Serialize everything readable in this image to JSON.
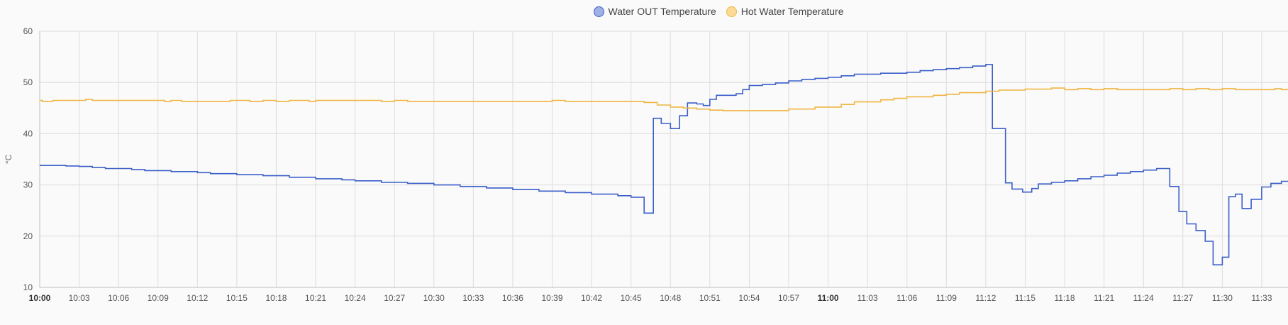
{
  "legend": {
    "items": [
      {
        "label": "Water OUT Temperature",
        "fill": "#9fb0e4",
        "stroke": "#3b5fc9"
      },
      {
        "label": "Hot Water Temperature",
        "fill": "#fbdb96",
        "stroke": "#f0b542"
      }
    ]
  },
  "chart_data": {
    "type": "line",
    "step": true,
    "ylabel": "°C",
    "xlabel": "",
    "ylim": [
      10,
      60
    ],
    "yticks": [
      10,
      20,
      30,
      40,
      50,
      60
    ],
    "x_unit": "time",
    "xlim": [
      "10:00",
      "11:35"
    ],
    "xticks": [
      "10:00",
      "10:03",
      "10:06",
      "10:09",
      "10:12",
      "10:15",
      "10:18",
      "10:21",
      "10:24",
      "10:27",
      "10:30",
      "10:33",
      "10:36",
      "10:39",
      "10:42",
      "10:45",
      "10:48",
      "10:51",
      "10:54",
      "10:57",
      "11:00",
      "11:03",
      "11:06",
      "11:09",
      "11:12",
      "11:15",
      "11:18",
      "11:21",
      "11:24",
      "11:27",
      "11:30",
      "11:33"
    ],
    "xticks_bold": [
      "10:00",
      "11:00"
    ],
    "grid": true,
    "legend_position": "top",
    "series": [
      {
        "name": "Water OUT Temperature",
        "color": "#3b5fc9",
        "points": [
          [
            "10:00",
            33.8
          ],
          [
            "10:02",
            33.7
          ],
          [
            "10:03",
            33.6
          ],
          [
            "10:04",
            33.4
          ],
          [
            "10:05",
            33.2
          ],
          [
            "10:07",
            33.0
          ],
          [
            "10:08",
            32.8
          ],
          [
            "10:10",
            32.6
          ],
          [
            "10:12",
            32.4
          ],
          [
            "10:13",
            32.2
          ],
          [
            "10:15",
            32.0
          ],
          [
            "10:17",
            31.8
          ],
          [
            "10:19",
            31.5
          ],
          [
            "10:21",
            31.2
          ],
          [
            "10:23",
            31.0
          ],
          [
            "10:24",
            30.8
          ],
          [
            "10:26",
            30.5
          ],
          [
            "10:28",
            30.3
          ],
          [
            "10:30",
            30.0
          ],
          [
            "10:32",
            29.7
          ],
          [
            "10:34",
            29.4
          ],
          [
            "10:36",
            29.1
          ],
          [
            "10:38",
            28.8
          ],
          [
            "10:40",
            28.5
          ],
          [
            "10:42",
            28.2
          ],
          [
            "10:44",
            27.9
          ],
          [
            "10:45",
            27.6
          ],
          [
            "10:46",
            24.5
          ],
          [
            "10:46.7",
            43.0
          ],
          [
            "10:47.3",
            42.0
          ],
          [
            "10:48",
            41.0
          ],
          [
            "10:48.7",
            43.5
          ],
          [
            "10:49.3",
            46.0
          ],
          [
            "10:50",
            45.8
          ],
          [
            "10:50.5",
            45.5
          ],
          [
            "10:51",
            46.7
          ],
          [
            "10:51.5",
            47.5
          ],
          [
            "10:53",
            47.8
          ],
          [
            "10:53.5",
            48.6
          ],
          [
            "10:54",
            49.4
          ],
          [
            "10:55",
            49.6
          ],
          [
            "10:56",
            49.9
          ],
          [
            "10:57",
            50.3
          ],
          [
            "10:58",
            50.6
          ],
          [
            "10:59",
            50.8
          ],
          [
            "11:00",
            51.0
          ],
          [
            "11:01",
            51.3
          ],
          [
            "11:02",
            51.6
          ],
          [
            "11:04",
            51.8
          ],
          [
            "11:06",
            52.0
          ],
          [
            "11:07",
            52.3
          ],
          [
            "11:08",
            52.5
          ],
          [
            "11:09",
            52.7
          ],
          [
            "11:10",
            52.9
          ],
          [
            "11:11",
            53.2
          ],
          [
            "11:12",
            53.5
          ],
          [
            "11:12.5",
            41.0
          ],
          [
            "11:13.5",
            30.4
          ],
          [
            "11:14",
            29.2
          ],
          [
            "11:14.8",
            28.6
          ],
          [
            "11:15.5",
            29.3
          ],
          [
            "11:16",
            30.2
          ],
          [
            "11:17",
            30.5
          ],
          [
            "11:18",
            30.8
          ],
          [
            "11:19",
            31.2
          ],
          [
            "11:20",
            31.6
          ],
          [
            "11:21",
            31.9
          ],
          [
            "11:22",
            32.3
          ],
          [
            "11:23",
            32.6
          ],
          [
            "11:24",
            32.9
          ],
          [
            "11:25",
            33.2
          ],
          [
            "11:26",
            29.7
          ],
          [
            "11:26.7",
            24.8
          ],
          [
            "11:27.3",
            22.4
          ],
          [
            "11:28",
            21.1
          ],
          [
            "11:28.7",
            19.0
          ],
          [
            "11:29.3",
            14.4
          ],
          [
            "11:30",
            15.9
          ],
          [
            "11:30.5",
            27.7
          ],
          [
            "11:31",
            28.2
          ],
          [
            "11:31.5",
            25.4
          ],
          [
            "11:32.2",
            27.2
          ],
          [
            "11:33",
            29.6
          ],
          [
            "11:33.7",
            30.3
          ],
          [
            "11:34.5",
            30.7
          ]
        ]
      },
      {
        "name": "Hot Water Temperature",
        "color": "#f0b542",
        "points": [
          [
            "10:00",
            46.5
          ],
          [
            "10:00.2",
            46.3
          ],
          [
            "10:01",
            46.5
          ],
          [
            "10:03.5",
            46.7
          ],
          [
            "10:04",
            46.5
          ],
          [
            "10:09.5",
            46.3
          ],
          [
            "10:10",
            46.5
          ],
          [
            "10:10.8",
            46.3
          ],
          [
            "10:14.5",
            46.5
          ],
          [
            "10:16",
            46.3
          ],
          [
            "10:17",
            46.5
          ],
          [
            "10:18",
            46.3
          ],
          [
            "10:19",
            46.5
          ],
          [
            "10:20.5",
            46.3
          ],
          [
            "10:21",
            46.5
          ],
          [
            "10:26",
            46.3
          ],
          [
            "10:27",
            46.5
          ],
          [
            "10:28",
            46.3
          ],
          [
            "10:39",
            46.5
          ],
          [
            "10:40",
            46.3
          ],
          [
            "10:46",
            46.1
          ],
          [
            "10:47",
            45.6
          ],
          [
            "10:48",
            45.2
          ],
          [
            "10:49",
            45.0
          ],
          [
            "10:50",
            44.8
          ],
          [
            "10:51",
            44.6
          ],
          [
            "10:52",
            44.5
          ],
          [
            "10:57",
            44.8
          ],
          [
            "10:59",
            45.2
          ],
          [
            "11:01",
            45.7
          ],
          [
            "11:02",
            46.2
          ],
          [
            "11:04",
            46.6
          ],
          [
            "11:05",
            46.9
          ],
          [
            "11:06",
            47.2
          ],
          [
            "11:08",
            47.5
          ],
          [
            "11:09",
            47.7
          ],
          [
            "11:10",
            48.0
          ],
          [
            "11:12",
            48.3
          ],
          [
            "11:13",
            48.5
          ],
          [
            "11:15",
            48.7
          ],
          [
            "11:17",
            48.9
          ],
          [
            "11:18",
            48.6
          ],
          [
            "11:19",
            48.8
          ],
          [
            "11:20",
            48.6
          ],
          [
            "11:21",
            48.8
          ],
          [
            "11:22",
            48.6
          ],
          [
            "11:26",
            48.8
          ],
          [
            "11:27",
            48.6
          ],
          [
            "11:28",
            48.8
          ],
          [
            "11:29",
            48.6
          ],
          [
            "11:30",
            48.8
          ],
          [
            "11:31",
            48.6
          ],
          [
            "11:34",
            48.8
          ],
          [
            "11:34.5",
            48.6
          ]
        ]
      }
    ]
  }
}
